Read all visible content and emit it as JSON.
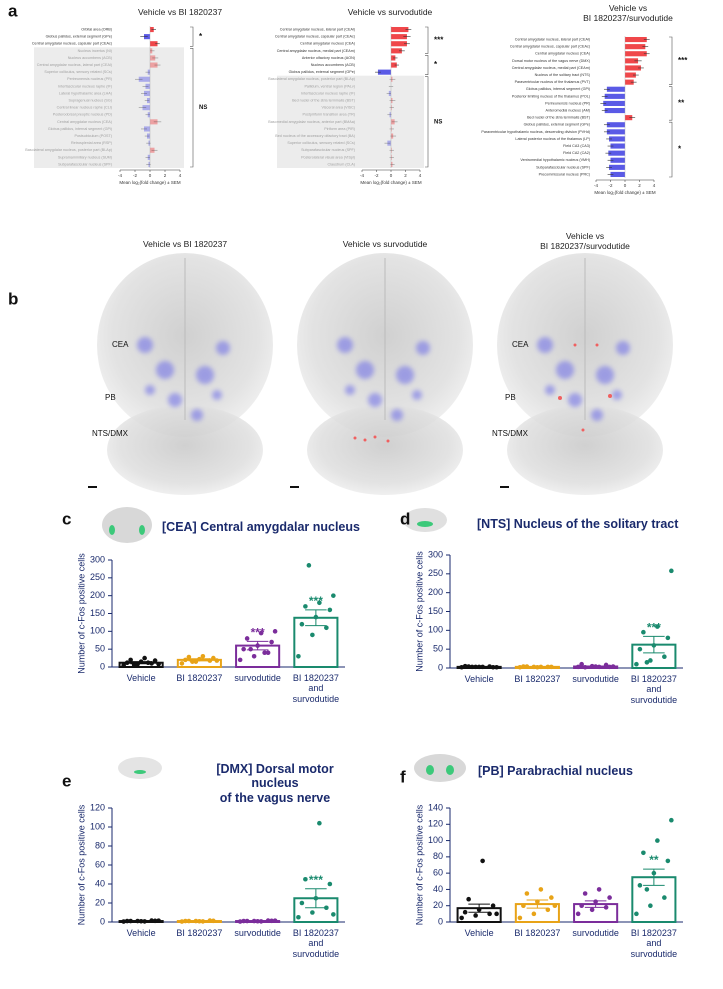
{
  "panel_letters": [
    "a",
    "b",
    "c",
    "d",
    "e",
    "f"
  ],
  "chart_data": [
    {
      "type": "hbar",
      "title": "Vehicle vs BI 1820237",
      "xlabel": "Mean log₂(fold change) ± SEM",
      "xlim": [
        -4,
        4
      ],
      "xticks": [
        -4,
        -2,
        0,
        2,
        4
      ],
      "pos_color": "#f0474a",
      "neg_color": "#5a5ae6",
      "groups": [
        {
          "label": "*",
          "shaded": false,
          "categories": [
            "Orbital area (ORB)",
            "Globus pallidus, external segment (GPe)",
            "Central amygdalar nucleus, capsular part (CEAc)"
          ],
          "values": [
            0.5,
            -0.8,
            1.0
          ],
          "errors": [
            0.3,
            0.5,
            0.3
          ]
        },
        {
          "label": "NS",
          "shaded": true,
          "categories": [
            "Nucleus incertus (NI)",
            "Nucleus accumbens (ACB)",
            "Central amygdalar nucleus, lateral part (CEAl)",
            "Superior colliculus, sensory related (SCs)",
            "Perireunensis nucleus (PR)",
            "Interfascicular nucleus raphe (IF)",
            "Lateral hypothalamic area (LHA)",
            "Supragenual nucleus (SG)",
            "Central linear nucleus raphe (CLI)",
            "Posterodorsal preoptic nucleus (PD)",
            "Central amygdalar nucleus (CEA)",
            "Globus pallidus, internal segment (GPi)",
            "Postsubiculum (POST)",
            "Retrosplenial area (RSP)",
            "Basolateral amygdalar nucleus, posterior part (BLAp)",
            "Supramammillary nucleus (SUM)",
            "Subparafascicular nucleus (SPF)"
          ],
          "values": [
            0.3,
            0.7,
            1.0,
            -0.3,
            -1.5,
            -0.6,
            -0.8,
            -0.4,
            -1.0,
            -0.3,
            1.0,
            -0.8,
            -0.4,
            -0.2,
            0.6,
            -0.3,
            -0.2
          ],
          "errors": [
            0.3,
            0.4,
            0.4,
            0.3,
            0.5,
            0.4,
            0.4,
            0.3,
            0.5,
            0.3,
            0.5,
            0.4,
            0.3,
            0.3,
            0.4,
            0.3,
            0.3
          ]
        }
      ]
    },
    {
      "type": "hbar",
      "title": "Vehicle vs survodutide",
      "xlabel": "Mean log₂(fold change) ± SEM",
      "xlim": [
        -4,
        4
      ],
      "xticks": [
        -4,
        -2,
        0,
        2,
        4
      ],
      "pos_color": "#f0474a",
      "neg_color": "#5a5ae6",
      "groups": [
        {
          "label": "***",
          "shaded": false,
          "categories": [
            "Central amygdalar nucleus, lateral part (CEAl)",
            "Central amygdalar nucleus, capsular part (CEAc)",
            "Central amygdalar nucleus (CEA)",
            "Central amygdalar nucleus, medial part (CEAm)"
          ],
          "values": [
            2.4,
            2.2,
            2.2,
            1.5
          ],
          "errors": [
            0.4,
            0.5,
            0.4,
            0.4
          ]
        },
        {
          "label": "*",
          "shaded": false,
          "categories": [
            "Anterior olfactory nucleus (AON)",
            "Nucleus accumbens (ACB)",
            "Globus pallidus, external segment (GPe)"
          ],
          "values": [
            0.6,
            0.8,
            -1.8
          ],
          "errors": [
            0.3,
            0.3,
            0.4
          ]
        },
        {
          "label": "NS",
          "shaded": true,
          "categories": [
            "Basolateral amygdalar nucleus, posterior part (BLAp)",
            "Pallidum, ventral region (PALv)",
            "Interfascicular nucleus raphe (IF)",
            "Bed nuclei of the stria terminalis (BST)",
            "Visceral area (VISC)",
            "Postpiriform transition area (TR)",
            "Basomedial amygdalar nucleus, anterior part (BMAa)",
            "Piriform area (PIR)",
            "Bed nucleus of the accessory olfactory tract (BA)",
            "Superior colliculus, sensory related (SCs)",
            "Subparafascicular nucleus (SPF)",
            "Posterolateral visual area (VISpl)",
            "Claustrum (CLA)"
          ],
          "values": [
            0.2,
            0.0,
            -0.3,
            0.2,
            0.1,
            -0.2,
            0.5,
            0.1,
            0.3,
            -0.5,
            0.1,
            0.1,
            0.2
          ],
          "errors": [
            0.4,
            0.3,
            0.3,
            0.4,
            0.3,
            0.3,
            0.4,
            0.3,
            0.4,
            0.4,
            0.3,
            0.3,
            0.3
          ]
        }
      ]
    },
    {
      "type": "hbar",
      "title": "Vehicle vs\nBI 1820237/survodutide",
      "xlabel": "Mean log₂(fold change) ± SEM",
      "xlim": [
        -4,
        4
      ],
      "xticks": [
        -4,
        -2,
        0,
        2,
        4
      ],
      "pos_color": "#f0474a",
      "neg_color": "#5a5ae6",
      "groups": [
        {
          "label": "***",
          "shaded": false,
          "categories": [
            "Central amygdalar nucleus, lateral part (CEAl)",
            "Central amygdalar nucleus, capsular part (CEAc)",
            "Central amygdalar nucleus (CEA)",
            "Dorsal motor nucleus of the vagus nerve (DMX)",
            "Central amygdalar nucleus, medial part (CEAm)",
            "Nucleus of the solitary tract (NTS)",
            "Paraventricular nucleus of the thalamus (PVT)"
          ],
          "values": [
            3.0,
            2.8,
            3.0,
            1.8,
            2.2,
            1.5,
            1.2
          ],
          "errors": [
            0.4,
            0.4,
            0.4,
            0.5,
            0.4,
            0.4,
            0.4
          ]
        },
        {
          "label": "**",
          "shaded": false,
          "categories": [
            "Globus pallidus, internal segment (GPi)",
            "Posterior limiting nucleus of the thalamus (POL)",
            "Perireunensis nucleus (PR)",
            "Anteromedial nucleus (AM)",
            "Bed nuclei of the stria terminalis (BST)"
          ],
          "values": [
            -2.5,
            -2.8,
            -3.0,
            -2.8,
            1.0
          ],
          "errors": [
            0.4,
            0.4,
            0.4,
            0.4,
            0.4
          ]
        },
        {
          "label": "*",
          "shaded": false,
          "categories": [
            "Globus pallidus, external segment (GPe)",
            "Paraventricular hypothalamic nucleus, descending division (PVHd)",
            "Lateral posterior nucleus of the thalamus (LP)",
            "Field CA3 (CA3)",
            "Field CA2 (CA2)",
            "Ventromedial hypothalamic nucleus (VMH)",
            "Subparafascicular nucleus (SPF)",
            "Precommissural nucleus (PRC)"
          ],
          "values": [
            -2.5,
            -2.5,
            -2.2,
            -2.0,
            -2.3,
            -2.0,
            -2.2,
            -2.0
          ],
          "errors": [
            0.4,
            0.4,
            0.4,
            0.4,
            0.4,
            0.4,
            0.4,
            0.4
          ]
        }
      ]
    },
    {
      "type": "bar_scatter",
      "title": "[CEA] Central amygdalar nucleus",
      "ylabel": "Number of c-Fos positive cells",
      "categories": [
        "Vehicle",
        "BI 1820237",
        "survodutide",
        "BI 1820237\nand\nsurvodutide"
      ],
      "colors": [
        "#111111",
        "#e8a317",
        "#7b2d9b",
        "#1a8a6e"
      ],
      "means": [
        12,
        20,
        60,
        138
      ],
      "sems": [
        3,
        3,
        12,
        22
      ],
      "points": [
        [
          5,
          8,
          10,
          12,
          15,
          18,
          20,
          25,
          8,
          6,
          12
        ],
        [
          10,
          15,
          18,
          20,
          22,
          25,
          28,
          30,
          18,
          15
        ],
        [
          20,
          30,
          40,
          50,
          60,
          70,
          80,
          95,
          100,
          50,
          40
        ],
        [
          30,
          90,
          110,
          120,
          140,
          160,
          170,
          180,
          200,
          285
        ]
      ],
      "significance": [
        null,
        null,
        "***",
        "***"
      ],
      "ylim": [
        0,
        300
      ],
      "yticks": [
        0,
        50,
        100,
        150,
        200,
        250,
        300
      ]
    },
    {
      "type": "bar_scatter",
      "title": "[NTS] Nucleus of the solitary tract",
      "ylabel": "Number of c-Fos positive cells",
      "categories": [
        "Vehicle",
        "BI 1820237",
        "survodutide",
        "BI 1820237\nand\nsurvodutide"
      ],
      "colors": [
        "#111111",
        "#e8a317",
        "#7b2d9b",
        "#1a8a6e"
      ],
      "means": [
        3,
        3,
        4,
        62
      ],
      "sems": [
        1,
        1,
        1,
        22
      ],
      "points": [
        [
          2,
          3,
          4,
          5,
          3,
          2,
          4,
          3,
          2,
          3
        ],
        [
          2,
          3,
          3,
          4,
          2,
          3,
          4,
          3
        ],
        [
          3,
          5,
          8,
          10,
          4,
          3,
          2,
          3,
          4
        ],
        [
          10,
          20,
          30,
          50,
          60,
          80,
          95,
          110,
          258,
          15
        ]
      ],
      "significance": [
        null,
        null,
        null,
        "***"
      ],
      "ylim": [
        0,
        300
      ],
      "yticks": [
        0,
        50,
        100,
        150,
        200,
        250,
        300
      ]
    },
    {
      "type": "bar_scatter",
      "title": "[DMX] Dorsal motor nucleus\nof the vagus nerve",
      "ylabel": "Number of c-Fos positive cells",
      "categories": [
        "Vehicle",
        "BI 1820237",
        "survodutide",
        "BI 1820237\nand\nsurvodutide"
      ],
      "colors": [
        "#111111",
        "#e8a317",
        "#7b2d9b",
        "#1a8a6e"
      ],
      "means": [
        1,
        1,
        1,
        25
      ],
      "sems": [
        0.3,
        0.3,
        0.3,
        10
      ],
      "points": [
        [
          0.5,
          1,
          1.5,
          1,
          0.8,
          1.2,
          1,
          0.6,
          1.4
        ],
        [
          0.5,
          1,
          1.5,
          1,
          0.8,
          1.2,
          1,
          0.6
        ],
        [
          0.5,
          1,
          1.5,
          1,
          0.8,
          1.2,
          1,
          0.6,
          1.4
        ],
        [
          5,
          10,
          15,
          20,
          25,
          40,
          45,
          104,
          8
        ]
      ],
      "significance": [
        null,
        null,
        null,
        "***"
      ],
      "ylim": [
        0,
        120
      ],
      "yticks": [
        0,
        20,
        40,
        60,
        80,
        100,
        120
      ]
    },
    {
      "type": "bar_scatter",
      "title": "[PB] Parabrachial nucleus",
      "ylabel": "Number of c-Fos positive cells",
      "categories": [
        "Vehicle",
        "BI 1820237",
        "survodutide",
        "BI 1820237\nand\nsurvodutide"
      ],
      "colors": [
        "#111111",
        "#e8a317",
        "#7b2d9b",
        "#1a8a6e"
      ],
      "means": [
        17,
        22,
        22,
        55
      ],
      "sems": [
        5,
        5,
        4,
        10
      ],
      "points": [
        [
          5,
          8,
          10,
          12,
          15,
          20,
          28,
          75,
          10
        ],
        [
          5,
          10,
          15,
          20,
          25,
          30,
          35,
          40,
          20
        ],
        [
          10,
          15,
          18,
          20,
          25,
          30,
          35,
          40
        ],
        [
          10,
          20,
          30,
          45,
          60,
          75,
          85,
          100,
          125,
          40
        ]
      ],
      "significance": [
        null,
        null,
        null,
        "**"
      ],
      "ylim": [
        0,
        140
      ],
      "yticks": [
        0,
        20,
        40,
        60,
        80,
        100,
        120,
        140
      ]
    }
  ],
  "brain_maps": [
    {
      "title": "Vehicle vs BI 1820237",
      "labels": [
        "CEA",
        "PB",
        "NTS/DMX"
      ]
    },
    {
      "title": "Vehicle vs survodutide",
      "labels": []
    },
    {
      "title": "Vehicle vs\nBI 1820237/survodutide",
      "labels": [
        "CEA",
        "PB",
        "NTS/DMX"
      ]
    }
  ]
}
